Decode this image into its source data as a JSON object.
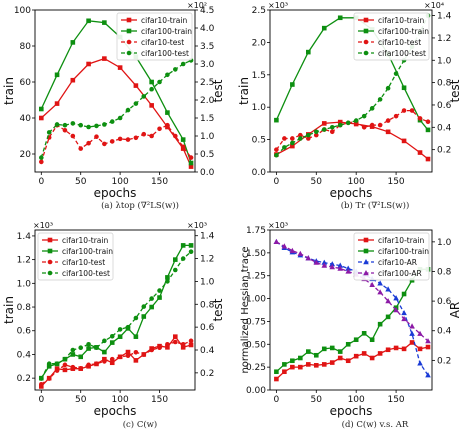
{
  "figure": {
    "captions": [
      "(a) λtop (∇²LS(w))",
      "(b) Tr (∇²LS(w))",
      "(c) C(w)",
      "(d) C(w) v.s. AR"
    ]
  },
  "colors": {
    "red": "#e01414",
    "green": "#0d8f10",
    "blue": "#1a3bd6",
    "purple": "#8c1aa6"
  },
  "chart_data": [
    {
      "type": "line",
      "xlabel": "epochs",
      "ylabel": "train",
      "y2label": "test",
      "xlim": [
        -8,
        195
      ],
      "ylim": [
        10,
        100
      ],
      "y2lim": [
        0,
        4.5
      ],
      "xticks": [
        0,
        50,
        100,
        150
      ],
      "yticks": [
        20,
        40,
        60,
        80,
        100
      ],
      "y2ticks": [
        0.0,
        0.5,
        1.0,
        1.5,
        2.0,
        2.5,
        3.0,
        3.5,
        4.0,
        4.5
      ],
      "y2ticklabels": [
        "0.0",
        "0.5",
        "1.0",
        "1.5",
        "2.0",
        "2.5",
        "3.0",
        "3.5",
        "4.0",
        "4.5"
      ],
      "y2_multiplier": "×10²",
      "legend": {
        "position": "top-right",
        "entries": [
          "cifar10-train",
          "cifar100-train",
          "cifar10-test",
          "cifar100-test"
        ]
      },
      "series": [
        {
          "name": "cifar10-train",
          "axis": "left",
          "color": "red",
          "dashed": false,
          "marker": "square",
          "x": [
            0,
            20,
            40,
            60,
            80,
            100,
            120,
            140,
            160,
            180,
            190
          ],
          "y": [
            40,
            48,
            61,
            70,
            73,
            68,
            58,
            47,
            35,
            23,
            13
          ]
        },
        {
          "name": "cifar100-train",
          "axis": "left",
          "color": "green",
          "dashed": false,
          "marker": "square",
          "x": [
            0,
            20,
            40,
            60,
            80,
            100,
            120,
            140,
            160,
            180,
            190
          ],
          "y": [
            45,
            64,
            82,
            94,
            93,
            85,
            74,
            60,
            43,
            28,
            15
          ]
        },
        {
          "name": "cifar10-test",
          "axis": "right",
          "color": "red",
          "dashed": true,
          "marker": "circle",
          "x": [
            0,
            10,
            20,
            30,
            40,
            50,
            60,
            70,
            80,
            90,
            100,
            110,
            120,
            130,
            140,
            150,
            160,
            170,
            180,
            190
          ],
          "y": [
            0.28,
            0.96,
            1.3,
            1.16,
            1.0,
            0.65,
            0.8,
            0.98,
            0.78,
            0.85,
            0.92,
            0.9,
            0.95,
            1.05,
            1.0,
            1.2,
            1.3,
            1.0,
            0.7,
            0.4
          ]
        },
        {
          "name": "cifar100-test",
          "axis": "right",
          "color": "green",
          "dashed": true,
          "marker": "circle",
          "x": [
            0,
            10,
            20,
            30,
            40,
            50,
            60,
            70,
            80,
            90,
            100,
            110,
            120,
            130,
            140,
            150,
            160,
            170,
            180,
            190
          ],
          "y": [
            0.4,
            1.1,
            1.32,
            1.3,
            1.35,
            1.3,
            1.25,
            1.28,
            1.32,
            1.4,
            1.5,
            1.72,
            1.9,
            2.1,
            2.3,
            2.5,
            2.7,
            2.85,
            3.0,
            3.1
          ]
        }
      ]
    },
    {
      "type": "line",
      "xlabel": "epochs",
      "ylabel": "train",
      "y2label": "test",
      "xlim": [
        -8,
        195
      ],
      "ylim": [
        0,
        2.5
      ],
      "y2lim": [
        0,
        1.45
      ],
      "xticks": [
        0,
        50,
        100,
        150
      ],
      "yticks": [
        0.0,
        0.5,
        1.0,
        1.5,
        2.0,
        2.5
      ],
      "yticklabels": [
        "0.0",
        "0.5",
        "1.0",
        "1.5",
        "2.0",
        "2.5"
      ],
      "y_multiplier": "×10³",
      "y2ticks": [
        0.2,
        0.4,
        0.6,
        0.8,
        1.0,
        1.2,
        1.4
      ],
      "y2ticklabels": [
        "0.2",
        "0.4",
        "0.6",
        "0.8",
        "1.0",
        "1.2",
        "1.4"
      ],
      "y2_multiplier": "×10⁴",
      "legend": {
        "position": "top-right",
        "entries": [
          "cifar10-train",
          "cifar100-train",
          "cifar10-test",
          "cifar100-test"
        ]
      },
      "series": [
        {
          "name": "cifar10-train",
          "axis": "left",
          "color": "red",
          "dashed": false,
          "marker": "square",
          "x": [
            0,
            20,
            40,
            60,
            80,
            100,
            120,
            140,
            160,
            180,
            190
          ],
          "y": [
            0.27,
            0.4,
            0.58,
            0.75,
            0.77,
            0.74,
            0.7,
            0.62,
            0.48,
            0.3,
            0.2
          ]
        },
        {
          "name": "cifar100-train",
          "axis": "left",
          "color": "green",
          "dashed": false,
          "marker": "square",
          "x": [
            0,
            20,
            40,
            60,
            80,
            100,
            120,
            140,
            160,
            180,
            190
          ],
          "y": [
            0.8,
            1.35,
            1.85,
            2.22,
            2.38,
            2.38,
            2.2,
            1.82,
            1.3,
            0.8,
            0.65
          ]
        },
        {
          "name": "cifar10-test",
          "axis": "right",
          "color": "red",
          "dashed": true,
          "marker": "circle",
          "x": [
            0,
            10,
            20,
            30,
            40,
            50,
            60,
            70,
            80,
            90,
            100,
            110,
            120,
            130,
            140,
            150,
            160,
            170,
            180,
            190
          ],
          "y": [
            0.2,
            0.3,
            0.3,
            0.33,
            0.3,
            0.33,
            0.38,
            0.36,
            0.42,
            0.44,
            0.45,
            0.4,
            0.42,
            0.42,
            0.46,
            0.5,
            0.55,
            0.55,
            0.48,
            0.45
          ]
        },
        {
          "name": "cifar100-test",
          "axis": "right",
          "color": "green",
          "dashed": true,
          "marker": "circle",
          "x": [
            0,
            10,
            20,
            30,
            40,
            50,
            60,
            70,
            80,
            90,
            100,
            110,
            120,
            130,
            140,
            150,
            160,
            170,
            180,
            190
          ],
          "y": [
            0.15,
            0.22,
            0.26,
            0.3,
            0.33,
            0.36,
            0.38,
            0.4,
            0.42,
            0.44,
            0.46,
            0.5,
            0.57,
            0.65,
            0.75,
            0.88,
            1.0,
            1.12,
            1.25,
            1.4
          ]
        }
      ]
    },
    {
      "type": "line",
      "xlabel": "epochs",
      "ylabel": "train",
      "y2label": "test",
      "xlim": [
        -8,
        195
      ],
      "ylim": [
        0.1,
        1.45
      ],
      "y2lim": [
        0.05,
        1.45
      ],
      "xticks": [
        0,
        50,
        100,
        150
      ],
      "yticks": [
        0.2,
        0.4,
        0.6,
        0.8,
        1.0,
        1.2,
        1.4
      ],
      "yticklabels": [
        "0.2",
        "0.4",
        "0.6",
        "0.8",
        "1.0",
        "1.2",
        "1.4"
      ],
      "y_multiplier": "×10³",
      "y2ticks": [
        0.2,
        0.4,
        0.6,
        0.8,
        1.0,
        1.2,
        1.4
      ],
      "y2ticklabels": [
        "0.2",
        "0.4",
        "0.6",
        "0.8",
        "1.0",
        "1.2",
        "1.4"
      ],
      "y2_multiplier": "×10³",
      "legend": {
        "position": "top-left",
        "entries": [
          "cifar10-train",
          "cifar100-train",
          "cifar10-test",
          "cifar100-test"
        ]
      },
      "series": [
        {
          "name": "cifar10-train",
          "axis": "left",
          "color": "red",
          "dashed": false,
          "marker": "square",
          "x": [
            0,
            10,
            20,
            30,
            40,
            50,
            60,
            70,
            80,
            90,
            100,
            110,
            120,
            130,
            140,
            150,
            160,
            170,
            180,
            190
          ],
          "y": [
            0.13,
            0.2,
            0.28,
            0.27,
            0.28,
            0.28,
            0.3,
            0.32,
            0.36,
            0.33,
            0.38,
            0.42,
            0.35,
            0.4,
            0.45,
            0.47,
            0.46,
            0.55,
            0.46,
            0.48
          ]
        },
        {
          "name": "cifar100-train",
          "axis": "left",
          "color": "green",
          "dashed": false,
          "marker": "square",
          "x": [
            0,
            10,
            20,
            30,
            40,
            50,
            60,
            70,
            80,
            90,
            100,
            110,
            120,
            130,
            140,
            150,
            160,
            170,
            180,
            190
          ],
          "y": [
            0.2,
            0.3,
            0.32,
            0.36,
            0.4,
            0.38,
            0.45,
            0.46,
            0.42,
            0.5,
            0.55,
            0.62,
            0.55,
            0.72,
            0.8,
            0.88,
            1.05,
            1.2,
            1.32,
            1.32
          ]
        },
        {
          "name": "cifar10-test",
          "axis": "right",
          "color": "red",
          "dashed": true,
          "marker": "circle",
          "x": [
            0,
            10,
            20,
            30,
            40,
            50,
            60,
            70,
            80,
            90,
            100,
            110,
            120,
            130,
            140,
            150,
            160,
            170,
            180,
            190
          ],
          "y": [
            0.1,
            0.15,
            0.22,
            0.27,
            0.25,
            0.24,
            0.27,
            0.28,
            0.3,
            0.32,
            0.34,
            0.35,
            0.38,
            0.36,
            0.4,
            0.42,
            0.45,
            0.47,
            0.45,
            0.48
          ]
        },
        {
          "name": "cifar100-test",
          "axis": "right",
          "color": "green",
          "dashed": true,
          "marker": "circle",
          "x": [
            0,
            10,
            20,
            30,
            40,
            50,
            60,
            70,
            80,
            90,
            100,
            110,
            120,
            130,
            140,
            150,
            160,
            170,
            180,
            190
          ],
          "y": [
            0.15,
            0.28,
            0.28,
            0.32,
            0.4,
            0.42,
            0.45,
            0.42,
            0.48,
            0.52,
            0.58,
            0.6,
            0.68,
            0.78,
            0.85,
            0.92,
            1.0,
            1.1,
            1.2,
            1.26
          ]
        }
      ]
    },
    {
      "type": "line",
      "xlabel": "epochs",
      "ylabel": "normalized Hessian trace",
      "y2label": "AR",
      "xlim": [
        -8,
        195
      ],
      "ylim": [
        0,
        1.75
      ],
      "y2lim": [
        0,
        1.08
      ],
      "xticks": [
        0,
        50,
        100,
        150
      ],
      "yticks": [
        0.0,
        0.25,
        0.5,
        0.75,
        1.0,
        1.25,
        1.5,
        1.75
      ],
      "yticklabels": [
        "0.00",
        "0.25",
        "0.50",
        "0.75",
        "1.00",
        "1.25",
        "1.50",
        "1.75"
      ],
      "y_multiplier": "×10³",
      "y2ticks": [
        0.2,
        0.4,
        0.6,
        0.8,
        1.0
      ],
      "y2ticklabels": [
        "0.2",
        "0.4",
        "0.6",
        "0.8",
        "1.0"
      ],
      "legend": {
        "position": "top-right",
        "entries": [
          "cifar10-train",
          "cifar100-train",
          "cifar10-AR",
          "cifar100-AR"
        ]
      },
      "series": [
        {
          "name": "cifar10-train",
          "axis": "left",
          "color": "red",
          "dashed": false,
          "marker": "square",
          "x": [
            0,
            10,
            20,
            30,
            40,
            50,
            60,
            70,
            80,
            90,
            100,
            110,
            120,
            130,
            140,
            150,
            160,
            170,
            180,
            190
          ],
          "y": [
            0.12,
            0.2,
            0.25,
            0.25,
            0.28,
            0.27,
            0.28,
            0.3,
            0.35,
            0.32,
            0.37,
            0.4,
            0.35,
            0.4,
            0.44,
            0.46,
            0.45,
            0.52,
            0.45,
            0.47
          ]
        },
        {
          "name": "cifar100-train",
          "axis": "left",
          "color": "green",
          "dashed": false,
          "marker": "square",
          "x": [
            0,
            10,
            20,
            30,
            40,
            50,
            60,
            70,
            80,
            90,
            100,
            110,
            120,
            130,
            140,
            150,
            160,
            170,
            180,
            190
          ],
          "y": [
            0.2,
            0.28,
            0.32,
            0.35,
            0.42,
            0.38,
            0.45,
            0.46,
            0.42,
            0.5,
            0.55,
            0.62,
            0.55,
            0.72,
            0.8,
            0.9,
            1.05,
            1.2,
            1.32,
            1.32
          ]
        },
        {
          "name": "cifar10-AR",
          "axis": "right",
          "color": "blue",
          "dashed": true,
          "marker": "triangle",
          "x": [
            0,
            10,
            20,
            30,
            40,
            50,
            60,
            70,
            80,
            90,
            100,
            110,
            120,
            130,
            140,
            150,
            160,
            170,
            180,
            190
          ],
          "y": [
            1.0,
            0.96,
            0.93,
            0.91,
            0.89,
            0.87,
            0.86,
            0.85,
            0.84,
            0.82,
            0.8,
            0.78,
            0.75,
            0.72,
            0.68,
            0.62,
            0.52,
            0.38,
            0.18,
            0.1
          ]
        },
        {
          "name": "cifar100-AR",
          "axis": "right",
          "color": "purple",
          "dashed": true,
          "marker": "triangle",
          "x": [
            0,
            10,
            20,
            30,
            40,
            50,
            60,
            70,
            80,
            90,
            100,
            110,
            120,
            130,
            140,
            150,
            160,
            170,
            180,
            190
          ],
          "y": [
            1.0,
            0.97,
            0.94,
            0.92,
            0.89,
            0.86,
            0.84,
            0.83,
            0.82,
            0.8,
            0.78,
            0.75,
            0.71,
            0.66,
            0.6,
            0.54,
            0.48,
            0.43,
            0.38,
            0.33
          ]
        }
      ]
    }
  ]
}
